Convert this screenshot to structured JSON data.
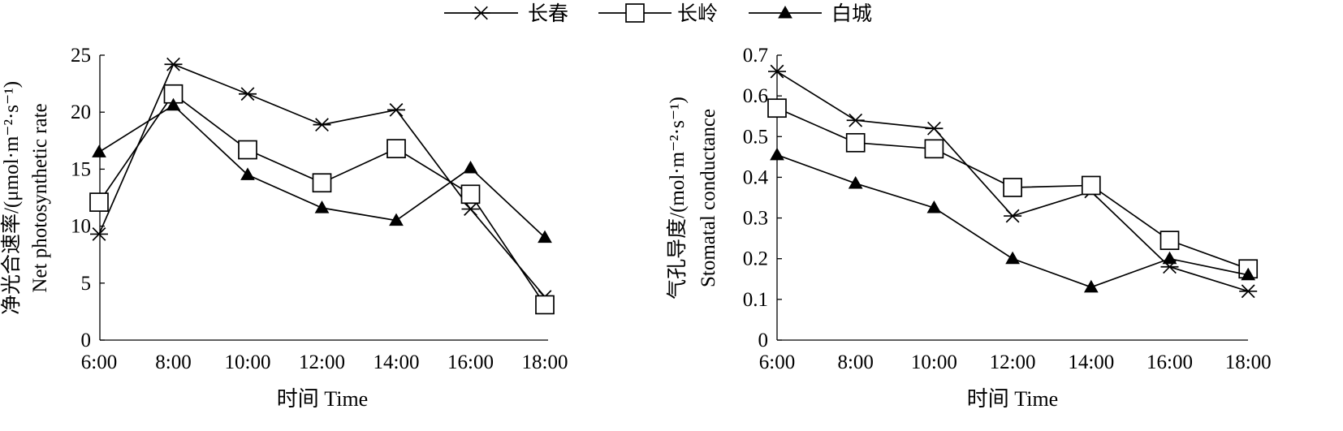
{
  "legend": {
    "placement": "top-center",
    "entries": [
      {
        "label": "长春",
        "marker": "asterisk"
      },
      {
        "label": "长岭",
        "marker": "open-square"
      },
      {
        "label": "白城",
        "marker": "filled-triangle"
      }
    ]
  },
  "chart_data": [
    {
      "type": "line",
      "xlabel": "时间 Time",
      "ylabel": "净光合速率/(μmol·m⁻²·s⁻¹)",
      "ylabel_line2": "Net photosynthetic rate",
      "categories": [
        "6:00",
        "8:00",
        "10:00",
        "12:00",
        "14:00",
        "16:00",
        "18:00"
      ],
      "ylim": [
        0,
        25
      ],
      "yticks": [
        0,
        5,
        10,
        15,
        20,
        25
      ],
      "ytick_labels": [
        "0",
        "5",
        "10",
        "15",
        "20",
        "25"
      ],
      "grid": false,
      "series": [
        {
          "name": "长春",
          "marker": "asterisk",
          "values": [
            9.3,
            24.2,
            21.6,
            18.9,
            20.2,
            11.5,
            3.8
          ]
        },
        {
          "name": "长岭",
          "marker": "open-square",
          "values": [
            12.1,
            21.6,
            16.7,
            13.8,
            16.8,
            12.8,
            3.1
          ]
        },
        {
          "name": "白城",
          "marker": "filled-triangle",
          "values": [
            16.5,
            20.6,
            14.5,
            11.6,
            10.5,
            15.1,
            9.0
          ]
        }
      ]
    },
    {
      "type": "line",
      "xlabel": "时间 Time",
      "ylabel": "气孔导度/(mol·m⁻²·s⁻¹)",
      "ylabel_line2": "Stomatal conductance",
      "categories": [
        "6:00",
        "8:00",
        "10:00",
        "12:00",
        "14:00",
        "16:00",
        "18:00"
      ],
      "ylim": [
        0,
        0.7
      ],
      "yticks": [
        0,
        0.1,
        0.2,
        0.3,
        0.4,
        0.5,
        0.6,
        0.7
      ],
      "ytick_labels": [
        "0",
        "0.1",
        "0.2",
        "0.3",
        "0.4",
        "0.5",
        "0.6",
        "0.7"
      ],
      "grid": false,
      "series": [
        {
          "name": "长春",
          "marker": "asterisk",
          "values": [
            0.66,
            0.54,
            0.52,
            0.305,
            0.365,
            0.18,
            0.12
          ]
        },
        {
          "name": "长岭",
          "marker": "open-square",
          "values": [
            0.57,
            0.485,
            0.47,
            0.375,
            0.38,
            0.245,
            0.175
          ]
        },
        {
          "name": "白城",
          "marker": "filled-triangle",
          "values": [
            0.455,
            0.385,
            0.325,
            0.2,
            0.13,
            0.2,
            0.16
          ]
        }
      ]
    }
  ]
}
